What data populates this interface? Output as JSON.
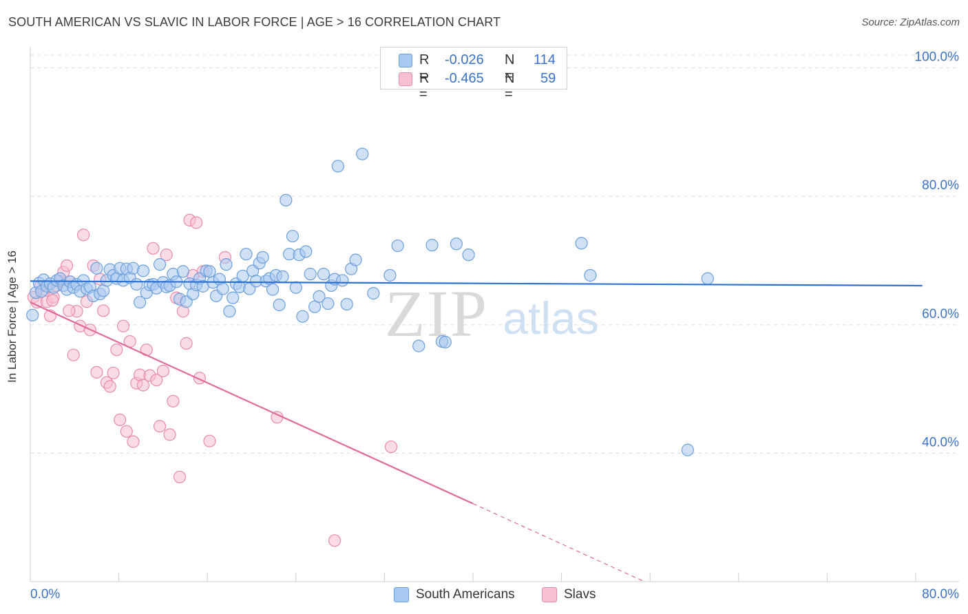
{
  "header": {
    "title": "SOUTH AMERICAN VS SLAVIC IN LABOR FORCE | AGE > 16 CORRELATION CHART",
    "source": "Source: ZipAtlas.com"
  },
  "watermark": {
    "zip": "ZIP",
    "atlas": "atlas"
  },
  "legend_top": [
    {
      "r_label": "R =",
      "r_value": "-0.026",
      "n_label": "N =",
      "n_value": "114"
    },
    {
      "r_label": "R =",
      "r_value": "-0.465",
      "n_label": "N =",
      "n_value": "59"
    }
  ],
  "legend_bottom": [
    {
      "label": "South Americans"
    },
    {
      "label": "Slavs"
    }
  ],
  "colors": {
    "blue_fill": "#a9c8ef",
    "blue_stroke": "#6b9fdc",
    "blue_line": "#2e72cf",
    "pink_fill": "#f7bfd1",
    "pink_stroke": "#e98aab",
    "pink_line": "#e06a96",
    "tick_text": "#3a72c8",
    "grid": "#dddddd"
  },
  "chart_data": {
    "type": "scatter",
    "title": "SOUTH AMERICAN VS SLAVIC IN LABOR FORCE | AGE > 16 CORRELATION CHART",
    "xlabel": "",
    "ylabel": "In Labor Force | Age > 16",
    "xlim": [
      0,
      80
    ],
    "ylim": [
      20,
      102
    ],
    "x_tick_labels": [
      "0.0%",
      "80.0%"
    ],
    "y_ticks": [
      40,
      60,
      80,
      100
    ],
    "y_tick_labels": [
      "40.0%",
      "60.0%",
      "80.0%",
      "100.0%"
    ],
    "series": [
      {
        "name": "South Americans",
        "r": -0.026,
        "n": 114,
        "trend": {
          "x": [
            0,
            80
          ],
          "y": [
            66.8,
            66.1
          ],
          "solid_to": 80
        },
        "points": [
          [
            0.2,
            61.5
          ],
          [
            0.5,
            65
          ],
          [
            0.8,
            66.5
          ],
          [
            1.0,
            65.2
          ],
          [
            1.2,
            67
          ],
          [
            1.5,
            66
          ],
          [
            1.8,
            66.4
          ],
          [
            2.1,
            65.8
          ],
          [
            2.4,
            66.9
          ],
          [
            2.7,
            67.2
          ],
          [
            3.0,
            66.1
          ],
          [
            3.3,
            65.5
          ],
          [
            3.6,
            66.7
          ],
          [
            3.9,
            65.8
          ],
          [
            4.2,
            66.3
          ],
          [
            4.5,
            65.2
          ],
          [
            4.8,
            66.9
          ],
          [
            5.1,
            65.6
          ],
          [
            5.4,
            65.9
          ],
          [
            5.7,
            64.5
          ],
          [
            6.0,
            68.8
          ],
          [
            6.3,
            64.8
          ],
          [
            6.6,
            65.3
          ],
          [
            6.9,
            66.9
          ],
          [
            7.2,
            68.6
          ],
          [
            7.5,
            67.7
          ],
          [
            7.8,
            67.2
          ],
          [
            8.1,
            68.8
          ],
          [
            8.4,
            66.9
          ],
          [
            8.7,
            68.7
          ],
          [
            9.0,
            67.3
          ],
          [
            9.3,
            68.8
          ],
          [
            9.6,
            66.3
          ],
          [
            9.9,
            63.5
          ],
          [
            10.2,
            68.4
          ],
          [
            10.5,
            65.0
          ],
          [
            10.8,
            66.2
          ],
          [
            11.1,
            66.3
          ],
          [
            11.4,
            65.7
          ],
          [
            11.7,
            69.4
          ],
          [
            12.0,
            66.6
          ],
          [
            12.3,
            65.9
          ],
          [
            12.6,
            66.1
          ],
          [
            12.9,
            67.9
          ],
          [
            13.2,
            66.7
          ],
          [
            13.5,
            64
          ],
          [
            13.8,
            68.3
          ],
          [
            14.1,
            63.6
          ],
          [
            14.4,
            66.4
          ],
          [
            14.7,
            64.8
          ],
          [
            15.0,
            66.2
          ],
          [
            15.3,
            67.2
          ],
          [
            15.6,
            66
          ],
          [
            15.9,
            68.4
          ],
          [
            16.2,
            68.3
          ],
          [
            16.5,
            66.6
          ],
          [
            16.8,
            64.5
          ],
          [
            17.1,
            67.1
          ],
          [
            17.4,
            65.6
          ],
          [
            17.7,
            69.4
          ],
          [
            18.0,
            62.1
          ],
          [
            18.3,
            64.2
          ],
          [
            18.6,
            66.4
          ],
          [
            18.9,
            65.9
          ],
          [
            19.2,
            67.6
          ],
          [
            19.5,
            71
          ],
          [
            19.8,
            65.6
          ],
          [
            20.1,
            68.4
          ],
          [
            20.4,
            66.8
          ],
          [
            20.7,
            69.6
          ],
          [
            21.0,
            70.5
          ],
          [
            21.3,
            66.8
          ],
          [
            21.6,
            67.2
          ],
          [
            21.9,
            65.5
          ],
          [
            22.2,
            67.7
          ],
          [
            22.5,
            63.1
          ],
          [
            22.8,
            67.5
          ],
          [
            23.1,
            79.4
          ],
          [
            23.4,
            71
          ],
          [
            23.7,
            73.8
          ],
          [
            24.0,
            65.8
          ],
          [
            24.3,
            70.9
          ],
          [
            24.6,
            61.3
          ],
          [
            24.9,
            71.4
          ],
          [
            25.3,
            67.9
          ],
          [
            25.7,
            62.8
          ],
          [
            26.1,
            64.4
          ],
          [
            26.5,
            67.9
          ],
          [
            26.9,
            63.3
          ],
          [
            27.2,
            66.1
          ],
          [
            27.5,
            67.1
          ],
          [
            27.8,
            84.7
          ],
          [
            28.2,
            66.9
          ],
          [
            28.6,
            63.2
          ],
          [
            29.0,
            68.7
          ],
          [
            29.4,
            70.1
          ],
          [
            30.0,
            86.6
          ],
          [
            31.0,
            64.9
          ],
          [
            32.5,
            67.7
          ],
          [
            33.2,
            72.3
          ],
          [
            35.1,
            56.7
          ],
          [
            36.3,
            72.4
          ],
          [
            37.2,
            57.4
          ],
          [
            37.5,
            57.3
          ],
          [
            38.5,
            72.6
          ],
          [
            39.6,
            70.9
          ],
          [
            49.8,
            72.7
          ],
          [
            50.6,
            67.7
          ],
          [
            59.4,
            40.5
          ],
          [
            61.2,
            67.2
          ]
        ]
      },
      {
        "name": "Slavs",
        "r": -0.465,
        "n": 59,
        "trend": {
          "x": [
            0,
            55.5
          ],
          "y": [
            63.5,
            20
          ],
          "solid_to": 40
        },
        "points": [
          [
            0.3,
            64.3
          ],
          [
            0.6,
            63.5
          ],
          [
            0.9,
            66
          ],
          [
            1.2,
            65.5
          ],
          [
            1.5,
            63.6
          ],
          [
            1.8,
            61.4
          ],
          [
            2.1,
            64.3
          ],
          [
            2.4,
            66.1
          ],
          [
            2.7,
            66.8
          ],
          [
            3.0,
            68.2
          ],
          [
            3.3,
            69.2
          ],
          [
            3.6,
            66.7
          ],
          [
            3.9,
            55.3
          ],
          [
            4.2,
            62.1
          ],
          [
            4.5,
            59.8
          ],
          [
            4.8,
            74
          ],
          [
            5.1,
            63.6
          ],
          [
            5.4,
            59.2
          ],
          [
            5.7,
            69.2
          ],
          [
            6.0,
            52.6
          ],
          [
            6.3,
            67.1
          ],
          [
            6.6,
            62.2
          ],
          [
            6.9,
            51
          ],
          [
            7.2,
            50.4
          ],
          [
            7.5,
            52.5
          ],
          [
            7.8,
            56.1
          ],
          [
            8.1,
            45.2
          ],
          [
            8.4,
            59.8
          ],
          [
            8.7,
            43.4
          ],
          [
            9.0,
            57.4
          ],
          [
            9.3,
            41.8
          ],
          [
            9.6,
            50.9
          ],
          [
            9.9,
            52.2
          ],
          [
            10.2,
            50.6
          ],
          [
            10.5,
            56.1
          ],
          [
            10.8,
            52.1
          ],
          [
            11.1,
            71.9
          ],
          [
            11.4,
            51.4
          ],
          [
            11.7,
            44.2
          ],
          [
            12.0,
            52.8
          ],
          [
            12.3,
            70.9
          ],
          [
            12.6,
            42.9
          ],
          [
            12.9,
            48.1
          ],
          [
            13.2,
            64.2
          ],
          [
            13.5,
            36.3
          ],
          [
            13.8,
            62.1
          ],
          [
            14.1,
            57.1
          ],
          [
            14.4,
            76.3
          ],
          [
            14.7,
            67.7
          ],
          [
            15.0,
            75.9
          ],
          [
            15.3,
            51.7
          ],
          [
            15.6,
            68.3
          ],
          [
            16.2,
            41.9
          ],
          [
            17.6,
            70.5
          ],
          [
            22.3,
            45.6
          ],
          [
            27.5,
            26.4
          ],
          [
            32.6,
            41
          ],
          [
            3.5,
            62.2
          ],
          [
            2.0,
            63.8
          ]
        ]
      }
    ]
  }
}
